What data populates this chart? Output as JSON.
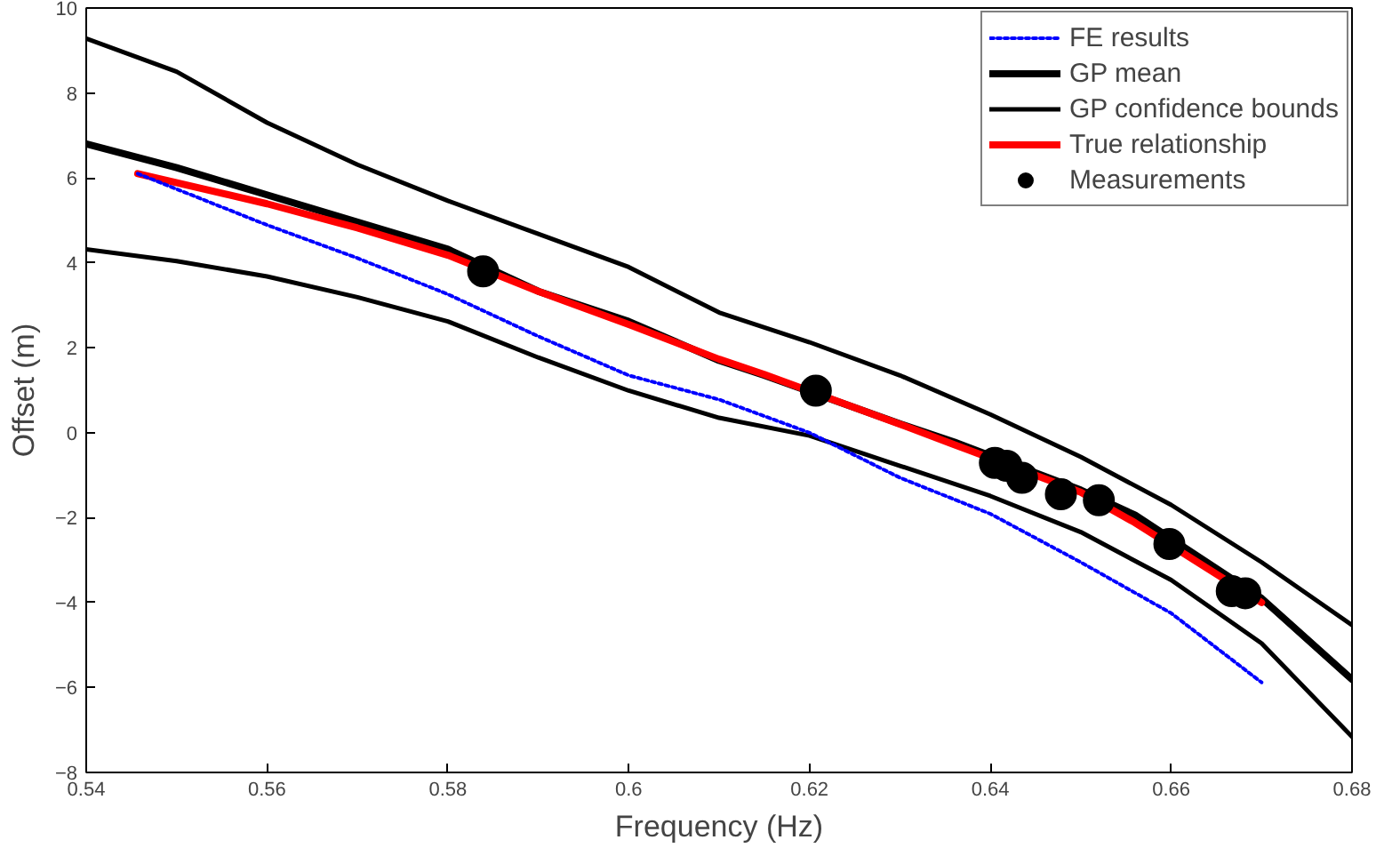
{
  "chart_data": {
    "type": "line",
    "xlabel": "Frequency (Hz)",
    "ylabel": "Offset (m)",
    "xlim": [
      0.54,
      0.68
    ],
    "ylim": [
      -8,
      10
    ],
    "xticks": [
      0.54,
      0.56,
      0.58,
      0.6,
      0.62,
      0.64,
      0.66,
      0.68
    ],
    "yticks": [
      -8,
      -6,
      -4,
      -2,
      0,
      2,
      4,
      6,
      8,
      10
    ],
    "grid": false,
    "legend": "top right",
    "series": [
      {
        "name": "FE results",
        "line_style": "dotted",
        "marker": "none",
        "color": "#0000ff",
        "x": [
          0.5457,
          0.56,
          0.57,
          0.58,
          0.59,
          0.6,
          0.61,
          0.62,
          0.63,
          0.64,
          0.65,
          0.66,
          0.67
        ],
        "values": [
          6.1,
          4.89,
          4.11,
          3.26,
          2.27,
          1.35,
          0.78,
          0.0,
          -1.06,
          -1.91,
          -3.05,
          -4.25,
          -5.88
        ]
      },
      {
        "name": "GP mean",
        "line_style": "solid",
        "marker": "none",
        "color": "#000000",
        "x": [
          0.54,
          0.55,
          0.56,
          0.57,
          0.58,
          0.59,
          0.6,
          0.61,
          0.615,
          0.63,
          0.636,
          0.65,
          0.656,
          0.67,
          0.68
        ],
        "values": [
          6.8,
          6.24,
          5.6,
          4.96,
          4.32,
          3.33,
          2.62,
          1.7,
          1.35,
          0.21,
          -0.22,
          -1.35,
          -1.94,
          -3.9,
          -5.81
        ]
      },
      {
        "name": "GP confidence bounds",
        "line_style": "solid",
        "marker": "none",
        "color": "#000000",
        "x": [
          0.54,
          0.55,
          0.56,
          0.57,
          0.58,
          0.59,
          0.6,
          0.61,
          0.62,
          0.63,
          0.64,
          0.65,
          0.66,
          0.67,
          0.68
        ],
        "values": [
          9.28,
          8.5,
          7.3,
          6.31,
          5.46,
          4.68,
          3.9,
          2.83,
          2.13,
          1.35,
          0.43,
          -0.57,
          -1.7,
          -3.05,
          -4.53
        ]
      },
      {
        "line_style": "solid",
        "marker": "none",
        "color": "#000000",
        "x": [
          0.54,
          0.55,
          0.56,
          0.57,
          0.58,
          0.59,
          0.6,
          0.61,
          0.62,
          0.63,
          0.64,
          0.65,
          0.66,
          0.67,
          0.68
        ],
        "values": [
          4.32,
          4.04,
          3.68,
          3.19,
          2.62,
          1.77,
          0.99,
          0.35,
          -0.07,
          -0.78,
          -1.49,
          -2.34,
          -3.47,
          -4.96,
          -7.16
        ]
      },
      {
        "name": "True relationship",
        "line_style": "solid",
        "marker": "none",
        "color": "#ff0000",
        "x": [
          0.5457,
          0.56,
          0.57,
          0.58,
          0.59,
          0.6,
          0.61,
          0.615,
          0.63,
          0.636,
          0.65,
          0.656,
          0.67
        ],
        "values": [
          6.1,
          5.39,
          4.82,
          4.18,
          3.33,
          2.55,
          1.73,
          1.37,
          0.2,
          -0.28,
          -1.4,
          -2.12,
          -4.0
        ]
      },
      {
        "name": "Measurements",
        "type": "scatter",
        "marker": "circle",
        "color": "#000000",
        "x": [
          0.5839,
          0.6207,
          0.6405,
          0.6418,
          0.6435,
          0.6478,
          0.652,
          0.6598,
          0.6667,
          0.6682
        ],
        "values": [
          3.8,
          0.99,
          -0.71,
          -0.78,
          -1.06,
          -1.45,
          -1.59,
          -2.62,
          -3.73,
          -3.78
        ]
      }
    ]
  }
}
